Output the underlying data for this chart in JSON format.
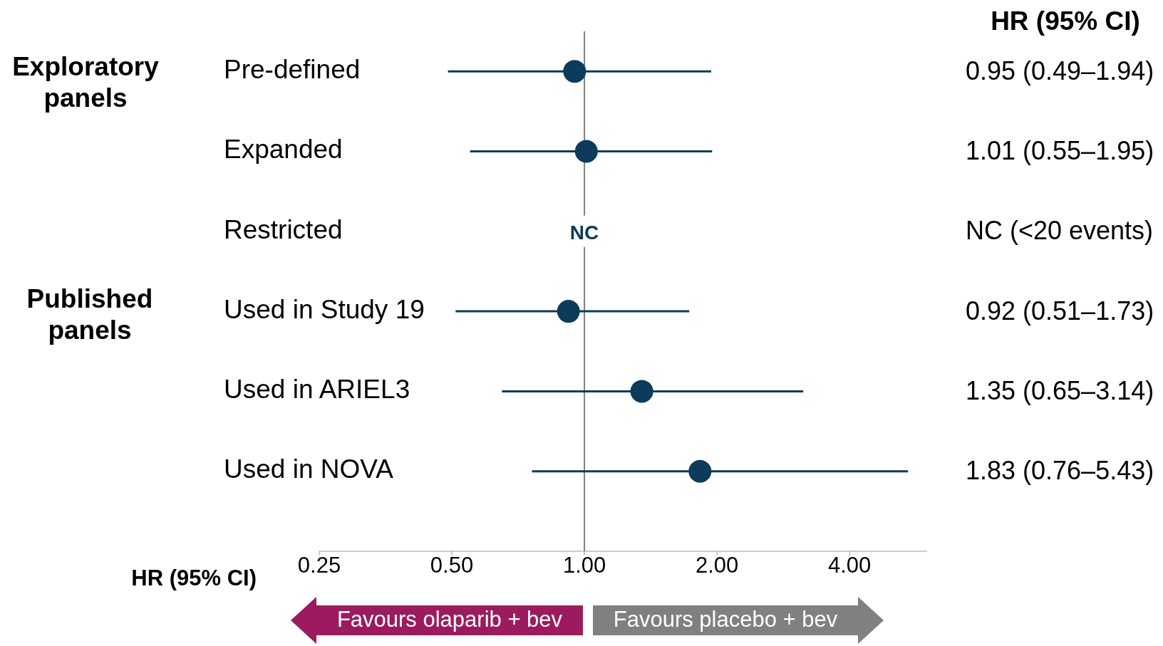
{
  "chart_data": {
    "type": "scatter",
    "orientation": "horizontal",
    "log": "x",
    "marker": "circle",
    "color": "#0d3b5c",
    "categories": [
      "Pre-defined",
      "Expanded",
      "Restricted",
      "Used in Study 19",
      "Used in ARIEL3",
      "Used in NOVA"
    ],
    "values": [
      0.95,
      1.01,
      null,
      0.92,
      1.35,
      1.83
    ],
    "errors": [
      [
        0.49,
        1.94
      ],
      [
        0.55,
        1.95
      ],
      null,
      [
        0.51,
        1.73
      ],
      [
        0.65,
        3.14
      ],
      [
        0.76,
        5.43
      ]
    ],
    "value_labels": [
      "0.95 (0.49–1.94)",
      "1.01 (0.55–1.95)",
      "NC (<20 events)",
      "0.92 (0.51–1.73)",
      "1.35 (0.65–3.14)",
      "1.83 (0.76–5.43)"
    ],
    "xlabel": "HR (95% CI)",
    "xlim": [
      0.25,
      6
    ],
    "xticks": [
      {
        "value": 0.25,
        "label": "0.25"
      },
      {
        "value": 0.5,
        "label": "0.50"
      },
      {
        "value": 1,
        "label": "1.00"
      },
      {
        "value": 2,
        "label": "2.00"
      },
      {
        "value": 4,
        "label": "4.00"
      }
    ],
    "ref_lines": [
      {
        "axis": "x",
        "value": 1,
        "color": "#808080"
      }
    ],
    "annotations": [
      "Exploratory panels",
      "Published panels",
      "HR (95% CI)",
      {
        "text": "NC",
        "x": 1,
        "y": "Restricted"
      },
      "Favours olaparib + bev",
      "Favours placebo + bev"
    ],
    "legend": false
  }
}
